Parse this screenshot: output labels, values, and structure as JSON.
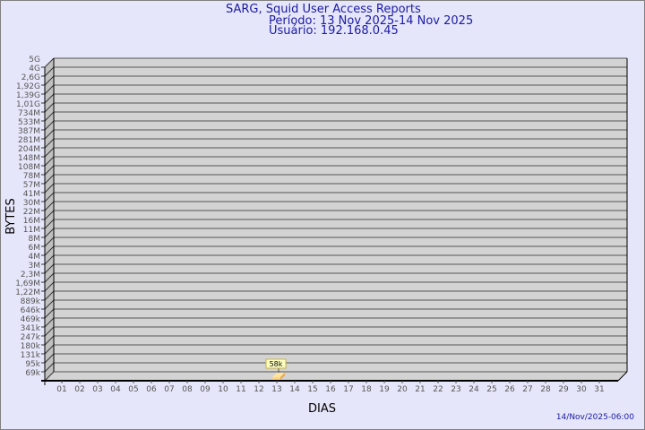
{
  "header": {
    "title": "SARG, Squid User Access Reports",
    "period": "Período: 13 Nov 2025-14 Nov 2025",
    "user": "Usuário: 192.168.0.45"
  },
  "footer": {
    "timestamp": "14/Nov/2025-06:00"
  },
  "chart_data": {
    "type": "bar",
    "xlabel": "DIAS",
    "ylabel": "BYTES",
    "y_scale": "log",
    "y_ticks": [
      "5G",
      "4G",
      "2,6G",
      "1,92G",
      "1,39G",
      "1,01G",
      "734M",
      "533M",
      "387M",
      "281M",
      "204M",
      "148M",
      "108M",
      "78M",
      "57M",
      "41M",
      "30M",
      "22M",
      "16M",
      "11M",
      "8M",
      "6M",
      "4M",
      "3M",
      "2,3M",
      "1,69M",
      "1,22M",
      "889k",
      "646k",
      "469k",
      "341k",
      "247k",
      "180k",
      "131k",
      "95k",
      "69k"
    ],
    "categories": [
      "01",
      "02",
      "03",
      "04",
      "05",
      "06",
      "07",
      "08",
      "09",
      "10",
      "11",
      "12",
      "13",
      "14",
      "15",
      "16",
      "17",
      "18",
      "19",
      "20",
      "21",
      "22",
      "23",
      "24",
      "25",
      "26",
      "27",
      "28",
      "29",
      "30",
      "31"
    ],
    "values": [
      {
        "day": "13",
        "bytes_label": "58k"
      }
    ],
    "grid": true,
    "colors": {
      "background": "#e6e6fa",
      "plot": "#d3d3d3",
      "bar": "#ffd580",
      "title": "#1a1aa6"
    }
  }
}
